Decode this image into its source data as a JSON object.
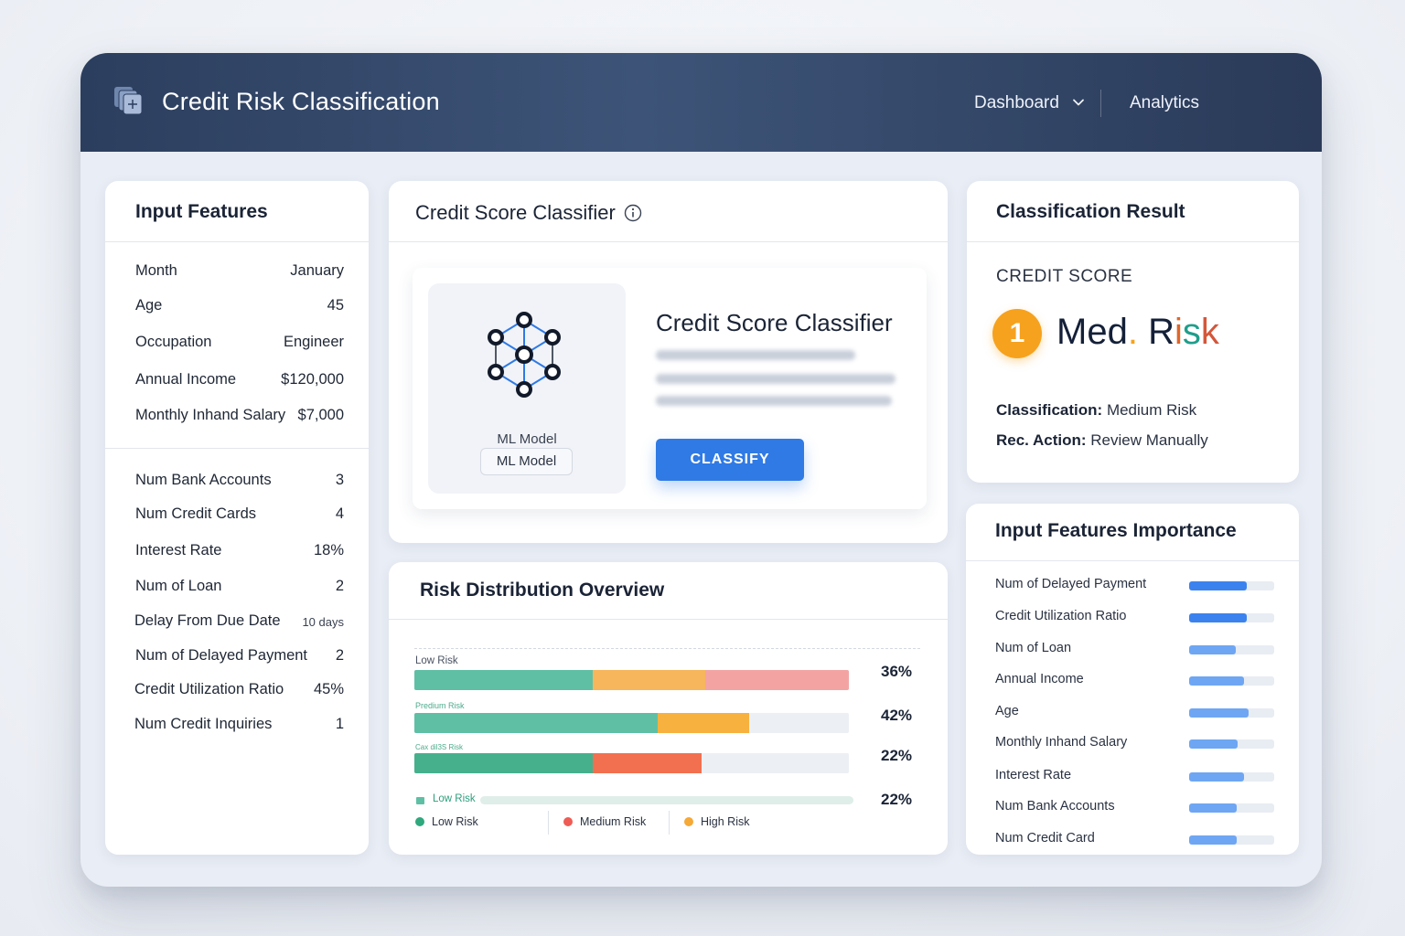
{
  "header": {
    "title": "Credit Risk Classification",
    "nav": [
      {
        "label": "Dashboard"
      },
      {
        "label": "Analytics"
      }
    ]
  },
  "input_features": {
    "title": "Input Features",
    "rows": [
      {
        "label": "Month",
        "value": "January"
      },
      {
        "label": "Age",
        "value": "45"
      },
      {
        "label": "Occupation",
        "value": "Engineer"
      },
      {
        "label": "Annual Income",
        "value": "$120,000"
      },
      {
        "label": "Monthly Inhand Salary",
        "value": "$7,000"
      },
      {
        "label": "Num Bank Accounts",
        "value": "3"
      },
      {
        "label": "Num Credit Cards",
        "value": "4"
      },
      {
        "label": "Interest Rate",
        "value": "18%"
      },
      {
        "label": "Num of Loan",
        "value": "2"
      },
      {
        "label": "Delay From Due Date",
        "value": "10 days"
      },
      {
        "label": "Num of Delayed Payment",
        "value": "2"
      },
      {
        "label": "Credit Utilization Ratio",
        "value": "45%"
      },
      {
        "label": "Num Credit Inquiries",
        "value": "1"
      }
    ]
  },
  "classifier": {
    "title": "Credit Score Classifier",
    "heading": "Credit Score Classifier",
    "model_caption": "ML Model",
    "model_pill": "ML Model",
    "button": "CLASSIFY"
  },
  "result": {
    "title": "Classification Result",
    "label": "CREDIT SCORE",
    "badge": "1",
    "value_main": "Med",
    "value_dot": ".",
    "value_r": "R",
    "value_i": "i",
    "value_s": "s",
    "value_k": "k",
    "classification_key": "Classification:",
    "classification_val": "Medium Risk",
    "action_key": "Rec. Action:",
    "action_val": "Review Manually",
    "colors": {
      "badge": "#f6a21e",
      "dot": "#f6a21e",
      "i": "#e0662a",
      "s": "#1f9e8a",
      "k": "#d4563a"
    }
  },
  "importance": {
    "title": "Input Features Importance",
    "items": [
      {
        "label": "Num of Delayed Payment",
        "value": 0.68
      },
      {
        "label": "Credit Utilization Ratio",
        "value": 0.68
      },
      {
        "label": "Num of Loan",
        "value": 0.55
      },
      {
        "label": "Annual Income",
        "value": 0.65
      },
      {
        "label": "Age",
        "value": 0.7
      },
      {
        "label": "Monthly Inhand Salary",
        "value": 0.57
      },
      {
        "label": "Interest Rate",
        "value": 0.65
      },
      {
        "label": "Num Bank Accounts",
        "value": 0.56
      },
      {
        "label": "Num Credit Card",
        "value": 0.56
      }
    ],
    "colors": {
      "strong": "#3b82ef",
      "light": "#6ea6f3"
    }
  },
  "distribution": {
    "title": "Risk Distribution Overview",
    "rows": [
      {
        "label": "Low Risk",
        "pct": "36%",
        "segments": [
          {
            "value": 0.41,
            "color": "#5fbfa5"
          },
          {
            "value": 0.26,
            "color": "#f7b65c"
          },
          {
            "value": 0.33,
            "color": "#f4a3a3"
          }
        ]
      },
      {
        "label": "Predium Risk",
        "pct": "42%",
        "segments": [
          {
            "value": 0.56,
            "color": "#5fbfa5"
          },
          {
            "value": 0.21,
            "color": "#f7b13f"
          }
        ]
      },
      {
        "label": "Cax dil3S Risk",
        "pct": "22%",
        "segments": [
          {
            "value": 0.41,
            "color": "#46b08d"
          },
          {
            "value": 0.25,
            "color": "#f2704f"
          }
        ]
      },
      {
        "label": "Low Risk",
        "pct": "22%",
        "segments": [
          {
            "value": 1.0,
            "color": "#dfeee8"
          }
        ]
      }
    ],
    "legend": [
      {
        "label": "Low Risk",
        "color": "#2fa87e"
      },
      {
        "label": "Medium Risk",
        "color": "#ef5b55"
      },
      {
        "label": "High Risk",
        "color": "#f5a937"
      }
    ]
  }
}
